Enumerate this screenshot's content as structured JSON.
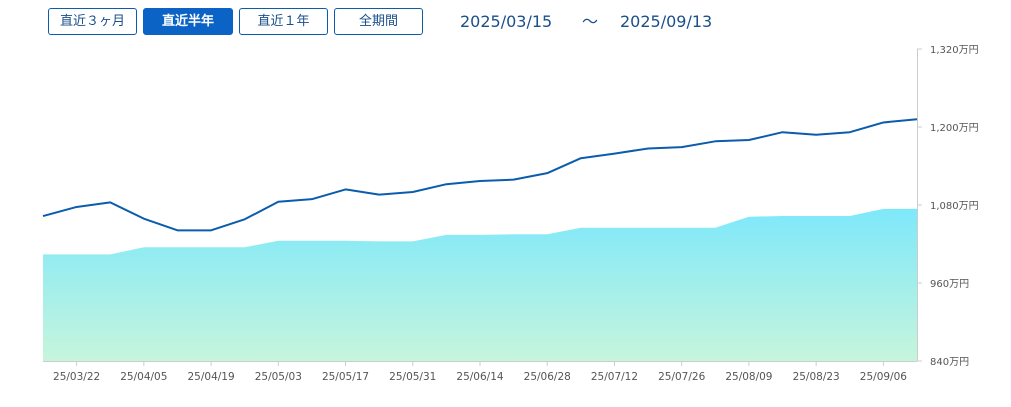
{
  "toolbar": {
    "buttons": [
      {
        "label": "直近３ヶ月",
        "active": false
      },
      {
        "label": "直近半年",
        "active": true
      },
      {
        "label": "直近１年",
        "active": false
      },
      {
        "label": "全期間",
        "active": false
      }
    ],
    "range_start": "2025/03/15",
    "range_sep": "～",
    "range_end": "2025/09/13"
  },
  "colors": {
    "line": "#0b5cad",
    "area_top": "#7ee8fa",
    "area_bottom": "#c6f5dc",
    "button_active": "#0b63c6"
  },
  "chart_data": {
    "type": "line",
    "x_ticks": [
      "25/03/22",
      "25/04/05",
      "25/04/19",
      "25/05/03",
      "25/05/17",
      "25/05/31",
      "25/06/14",
      "25/06/28",
      "25/07/12",
      "25/07/26",
      "25/08/09",
      "25/08/23",
      "25/09/06"
    ],
    "y_ticks": [
      "840万円",
      "960万円",
      "1,080万円",
      "1,200万円",
      "1,320万円"
    ],
    "ylim": [
      840,
      1320
    ],
    "y_unit": "万円",
    "x": [
      "25/03/15",
      "25/03/22",
      "25/03/29",
      "25/04/05",
      "25/04/12",
      "25/04/19",
      "25/04/26",
      "25/05/03",
      "25/05/10",
      "25/05/17",
      "25/05/24",
      "25/05/31",
      "25/06/07",
      "25/06/14",
      "25/06/21",
      "25/06/28",
      "25/07/05",
      "25/07/12",
      "25/07/19",
      "25/07/26",
      "25/08/02",
      "25/08/09",
      "25/08/16",
      "25/08/23",
      "25/08/30",
      "25/09/06",
      "25/09/13"
    ],
    "series": [
      {
        "style": "line",
        "values": [
          1063,
          1077,
          1084,
          1059,
          1041,
          1041,
          1058,
          1085,
          1089,
          1104,
          1096,
          1100,
          1112,
          1117,
          1119,
          1129,
          1152,
          1159,
          1167,
          1169,
          1178,
          1180,
          1192,
          1188,
          1192,
          1207,
          1212
        ]
      },
      {
        "style": "area",
        "values": [
          1004,
          1004,
          1004,
          1015,
          1015,
          1015,
          1015,
          1025,
          1025,
          1025,
          1024,
          1024,
          1034,
          1034,
          1035,
          1035,
          1045,
          1045,
          1045,
          1045,
          1045,
          1062,
          1063,
          1063,
          1063,
          1074,
          1074
        ]
      }
    ]
  }
}
